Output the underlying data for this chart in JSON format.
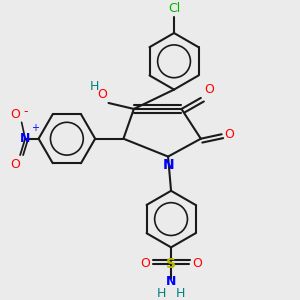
{
  "bg_color": "#ebebeb",
  "line_color": "#1a1a1a",
  "bond_lw": 1.5,
  "font_size": 9,
  "colors": {
    "O": "#ff0000",
    "N": "#0000ff",
    "H": "#008080",
    "Cl": "#00b300",
    "S": "#b8b800",
    "NO2_N": "#0000ff",
    "NO2_O": "#ff0000"
  }
}
